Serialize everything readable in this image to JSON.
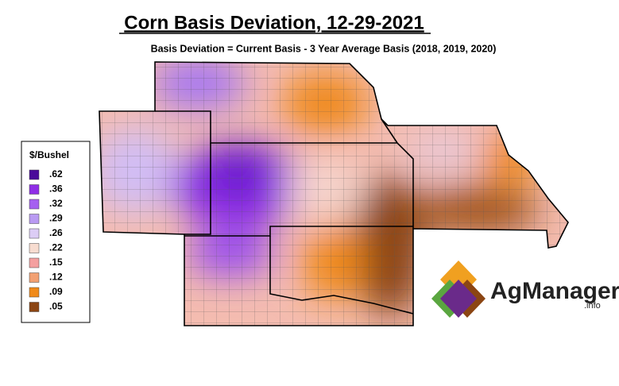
{
  "header": {
    "title": "Corn Basis Deviation, 12-29-2021",
    "subtitle": "Basis Deviation = Current Basis - 3 Year Average Basis (2018, 2019, 2020)"
  },
  "legend": {
    "title": "$/Bushel",
    "items": [
      {
        "value": 0.62,
        "label": ".62",
        "color": "#4a0a9a"
      },
      {
        "value": 0.36,
        "label": ".36",
        "color": "#8f2ee6"
      },
      {
        "value": 0.32,
        "label": ".32",
        "color": "#a560f0"
      },
      {
        "value": 0.29,
        "label": ".29",
        "color": "#b99af2"
      },
      {
        "value": 0.26,
        "label": ".26",
        "color": "#dccdf5"
      },
      {
        "value": 0.22,
        "label": ".22",
        "color": "#f7dcd0"
      },
      {
        "value": 0.15,
        "label": ".15",
        "color": "#f4a0a0"
      },
      {
        "value": 0.12,
        "label": ".12",
        "color": "#f2a072"
      },
      {
        "value": 0.09,
        "label": ".09",
        "color": "#f08a1a"
      },
      {
        "value": 0.05,
        "label": ".05",
        "color": "#8b4513"
      }
    ]
  },
  "logo": {
    "name": "AgManager",
    "suffix": ".info"
  }
}
